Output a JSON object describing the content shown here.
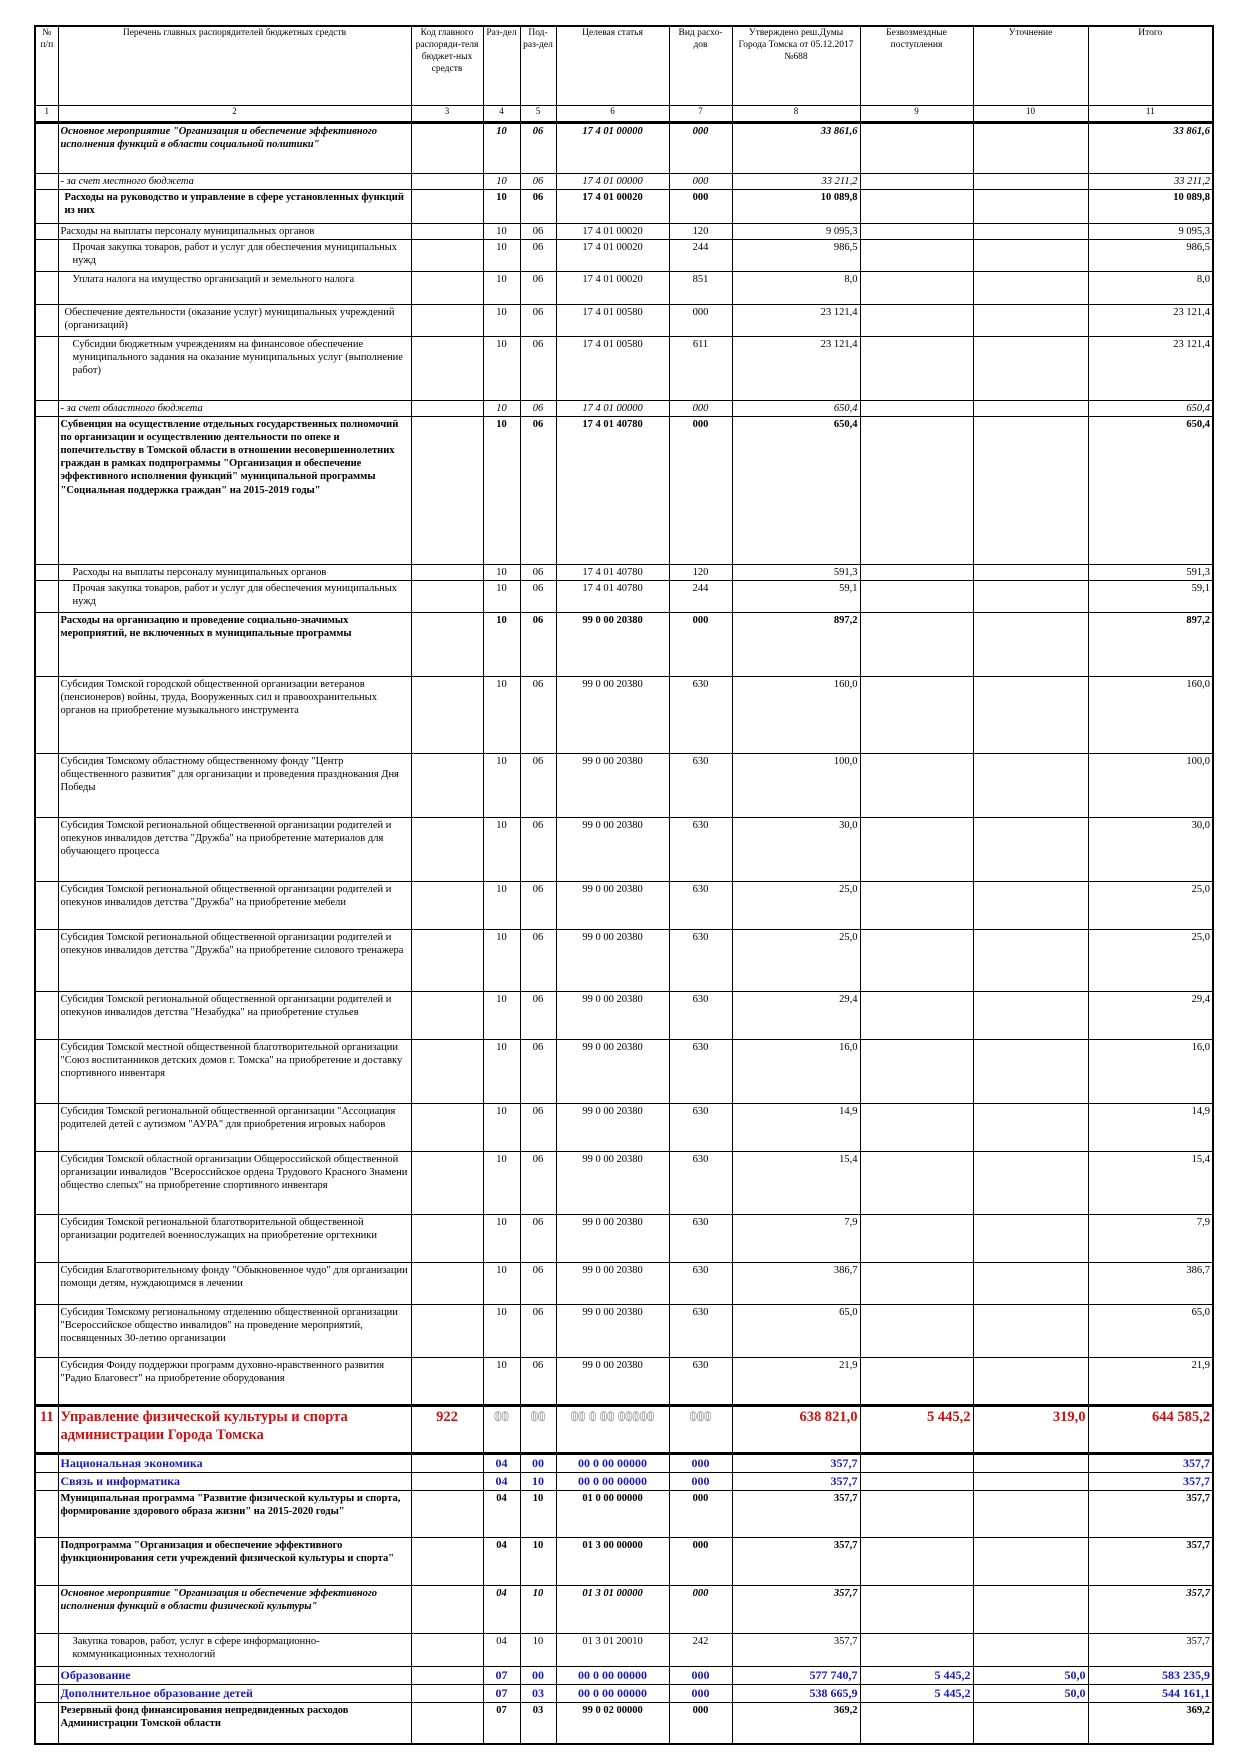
{
  "table": {
    "header": [
      "№ п/п",
      "Перечень главных распорядителей бюджетных средств",
      "Код главного распоряди-теля бюджет-ных средств",
      "Раз-дел",
      "Под-раз-дел",
      "Целевая статья",
      "Вид расхо-дов",
      "Утверждено реш.Думы Города Томска от 05.12.2017 №688",
      "Безвозмездные поступления",
      "Уточнение",
      "Итого"
    ],
    "column_numbers": [
      "1",
      "2",
      "3",
      "4",
      "5",
      "6",
      "7",
      "8",
      "9",
      "10",
      "11"
    ],
    "rows": [
      [
        null,
        "Основное мероприятие \"Организация и обеспечение эффективного исполнения функций в области социальной политики\"",
        null,
        "10",
        "06",
        "17 4 01 00000",
        "000",
        "33 861,6",
        null,
        null,
        "33 861,6"
      ],
      [
        null,
        "- за счет местного бюджета",
        null,
        "10",
        "06",
        "17 4 01 00000",
        "000",
        "33 211,2",
        null,
        null,
        "33 211,2"
      ],
      [
        null,
        "Расходы на руководство и управление в сфере установленных функций из них",
        null,
        "10",
        "06",
        "17 4 01 00020",
        "000",
        "10 089,8",
        null,
        null,
        "10 089,8"
      ],
      [
        null,
        "Расходы на выплаты персоналу муниципальных органов",
        null,
        "10",
        "06",
        "17 4 01 00020",
        "120",
        "9 095,3",
        null,
        null,
        "9 095,3"
      ],
      [
        null,
        "Прочая закупка товаров, работ и услуг для обеспечения муниципальных нужд",
        null,
        "10",
        "06",
        "17 4 01 00020",
        "244",
        "986,5",
        null,
        null,
        "986,5"
      ],
      [
        null,
        "Уплата налога на имущество организаций и земельного налога",
        null,
        "10",
        "06",
        "17 4 01 00020",
        "851",
        "8,0",
        null,
        null,
        "8,0"
      ],
      [
        null,
        "Обеспечение деятельности (оказание услуг) муниципальных учреждений (организаций)",
        null,
        "10",
        "06",
        "17 4 01 00580",
        "000",
        "23 121,4",
        null,
        null,
        "23 121,4"
      ],
      [
        null,
        "Субсидии бюджетным учреждениям на финансовое обеспечение муниципального задания на оказание муниципальных услуг (выполнение работ)",
        null,
        "10",
        "06",
        "17 4 01 00580",
        "611",
        "23 121,4",
        null,
        null,
        "23 121,4"
      ],
      [
        null,
        "- за счет областного бюджета",
        null,
        "10",
        "06",
        "17 4 01 00000",
        "000",
        "650,4",
        null,
        null,
        "650,4"
      ],
      [
        null,
        "Субвенция на осуществление отдельных государственных полномочий по организации и осуществлению деятельности по опеке и попечительству в Томской области в отношении несовершеннолетних граждан в рамках подпрограммы \"Организация и обеспечение эффективного исполнения функций\" муниципальной программы \"Социальная поддержка граждан\" на 2015-2019 годы\"",
        null,
        "10",
        "06",
        "17 4 01 40780",
        "000",
        "650,4",
        null,
        null,
        "650,4"
      ],
      [
        null,
        "Расходы на выплаты персоналу муниципальных органов",
        null,
        "10",
        "06",
        "17 4 01 40780",
        "120",
        "591,3",
        null,
        null,
        "591,3"
      ],
      [
        null,
        "Прочая закупка товаров, работ и услуг для обеспечения муниципальных нужд",
        null,
        "10",
        "06",
        "17 4 01 40780",
        "244",
        "59,1",
        null,
        null,
        "59,1"
      ],
      [
        null,
        "Расходы на организацию и проведение социально-значимых мероприятий, не включенных в муниципальные программы",
        null,
        "10",
        "06",
        "99 0 00 20380",
        "000",
        "897,2",
        null,
        null,
        "897,2"
      ],
      [
        null,
        "Субсидия Томской городской общественной организации ветеранов (пенсионеров) войны, труда, Вооруженных сил и правоохранительных органов на приобретение музыкального инструмента",
        null,
        "10",
        "06",
        "99 0 00 20380",
        "630",
        "160,0",
        null,
        null,
        "160,0"
      ],
      [
        null,
        "Субсидия Томскому областному общественному фонду \"Центр общественного развития\" для организации и проведения празднования Дня Победы",
        null,
        "10",
        "06",
        "99 0 00 20380",
        "630",
        "100,0",
        null,
        null,
        "100,0"
      ],
      [
        null,
        "Субсидия Томской региональной общественной организации родителей и опекунов инвалидов детства \"Дружба\" на приобретение материалов для обучающего процесса",
        null,
        "10",
        "06",
        "99 0 00 20380",
        "630",
        "30,0",
        null,
        null,
        "30,0"
      ],
      [
        null,
        "Субсидия Томской региональной общественной организации родителей и опекунов инвалидов детства \"Дружба\" на приобретение мебели",
        null,
        "10",
        "06",
        "99 0 00 20380",
        "630",
        "25,0",
        null,
        null,
        "25,0"
      ],
      [
        null,
        "Субсидия Томской региональной общественной организации родителей и опекунов инвалидов детства \"Дружба\" на приобретение силового тренажера",
        null,
        "10",
        "06",
        "99 0 00 20380",
        "630",
        "25,0",
        null,
        null,
        "25,0"
      ],
      [
        null,
        "Субсидия Томской региональной общественной организации родителей и опекунов инвалидов детства \"Незабудка\" на приобретение стульев",
        null,
        "10",
        "06",
        "99 0 00 20380",
        "630",
        "29,4",
        null,
        null,
        "29,4"
      ],
      [
        null,
        "Субсидия Томской местной общественной благотворительной организации \"Союз воспитанников детских домов г. Томска\" на приобретение и доставку спортивного инвентаря",
        null,
        "10",
        "06",
        "99 0 00 20380",
        "630",
        "16,0",
        null,
        null,
        "16,0"
      ],
      [
        null,
        "Субсидия Томской региональной общественной организации \"Ассоциация родителей детей с аутизмом \"АУРА\" для приобретения игровых наборов",
        null,
        "10",
        "06",
        "99 0 00 20380",
        "630",
        "14,9",
        null,
        null,
        "14,9"
      ],
      [
        null,
        "Субсидия Томской областной организации Общероссийской общественной организации инвалидов \"Всероссийское ордена Трудового Красного Знамени общество слепых\" на приобретение спортивного инвентаря",
        null,
        "10",
        "06",
        "99 0 00 20380",
        "630",
        "15,4",
        null,
        null,
        "15,4"
      ],
      [
        null,
        "Субсидия Томской региональной благотворительной общественной организации родителей военнослужащих на приобретение оргтехники",
        null,
        "10",
        "06",
        "99 0 00 20380",
        "630",
        "7,9",
        null,
        null,
        "7,9"
      ],
      [
        null,
        "Субсидия Благотворительному фонду \"Обыкновенное чудо\" для организации помощи детям, нуждающимся в лечении",
        null,
        "10",
        "06",
        "99 0 00 20380",
        "630",
        "386,7",
        null,
        null,
        "386,7"
      ],
      [
        null,
        "Субсидия Томскому региональному отделению общественной организации \"Всероссийское общество инвалидов\" на проведение мероприятий, посвященных 30-летию организации",
        null,
        "10",
        "06",
        "99 0 00 20380",
        "630",
        "65,0",
        null,
        null,
        "65,0"
      ],
      [
        null,
        "Субсидия Фонду поддержки программ духовно-нравственного развития \"Радио Благовест\" на приобретение оборудования",
        null,
        "10",
        "06",
        "99 0 00 20380",
        "630",
        "21,9",
        null,
        null,
        "21,9"
      ],
      [
        "11",
        "Управление физической культуры и спорта администрации Города Томска",
        "922",
        "00",
        "00",
        "00 0 00 00000",
        "000",
        "638 821,0",
        "5 445,2",
        "319,0",
        "644 585,2"
      ],
      [
        null,
        "Национальная экономика",
        null,
        "04",
        "00",
        "00 0 00 00000",
        "000",
        "357,7",
        null,
        null,
        "357,7"
      ],
      [
        null,
        "Связь и информатика",
        null,
        "04",
        "10",
        "00 0 00 00000",
        "000",
        "357,7",
        null,
        null,
        "357,7"
      ],
      [
        null,
        "Муниципальная программа \"Развитие физической культуры и спорта, формирование здорового образа жизни\" на 2015-2020 годы\"",
        null,
        "04",
        "10",
        "01 0 00 00000",
        "000",
        "357,7",
        null,
        null,
        "357,7"
      ],
      [
        null,
        "Подпрограмма \"Организация и обеспечение эффективного функционирования сети учреждений физической культуры и спорта\"",
        null,
        "04",
        "10",
        "01 3 00 00000",
        "000",
        "357,7",
        null,
        null,
        "357,7"
      ],
      [
        null,
        "Основное мероприятие \"Организация и обеспечение эффективного исполнения функций в области физической культуры\"",
        null,
        "04",
        "10",
        "01 3 01 00000",
        "000",
        "357,7",
        null,
        null,
        "357,7"
      ],
      [
        null,
        "Закупка товаров, работ, услуг в сфере информационно-коммуникационных технологий",
        null,
        "04",
        "10",
        "01 3 01 20010",
        "242",
        "357,7",
        null,
        null,
        "357,7"
      ],
      [
        null,
        "Образование",
        null,
        "07",
        "00",
        "00 0 00 00000",
        "000",
        "577 740,7",
        "5 445,2",
        "50,0",
        "583 235,9"
      ],
      [
        null,
        "Дополнительное образование детей",
        null,
        "07",
        "03",
        "00 0 00 00000",
        "000",
        "538 665,9",
        "5 445,2",
        "50,0",
        "544 161,1"
      ],
      [
        null,
        "Резервный фонд финансирования непредвиденных расходов Администрации Томской области",
        null,
        "07",
        "03",
        "99 0 02 00000",
        "000",
        "369,2",
        null,
        null,
        "369,2"
      ]
    ]
  }
}
